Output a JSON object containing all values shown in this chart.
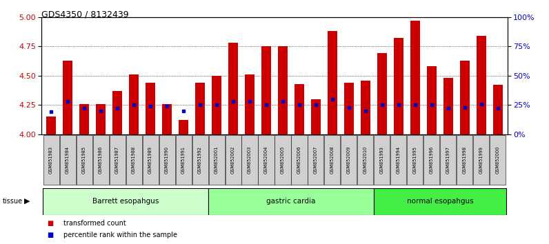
{
  "title": "GDS4350 / 8132439",
  "samples": [
    "GSM851983",
    "GSM851984",
    "GSM851985",
    "GSM851986",
    "GSM851987",
    "GSM851988",
    "GSM851989",
    "GSM851990",
    "GSM851991",
    "GSM851992",
    "GSM852001",
    "GSM852002",
    "GSM852003",
    "GSM852004",
    "GSM852005",
    "GSM852006",
    "GSM852007",
    "GSM852008",
    "GSM852009",
    "GSM852010",
    "GSM851993",
    "GSM851994",
    "GSM851995",
    "GSM851996",
    "GSM851997",
    "GSM851998",
    "GSM851999",
    "GSM852000"
  ],
  "transformed_count": [
    4.15,
    4.63,
    4.26,
    4.26,
    4.37,
    4.51,
    4.44,
    4.26,
    4.12,
    4.44,
    4.5,
    4.78,
    4.51,
    4.75,
    4.75,
    4.43,
    4.3,
    4.88,
    4.44,
    4.46,
    4.69,
    4.82,
    4.97,
    4.58,
    4.48,
    4.63,
    4.84,
    4.42
  ],
  "percentile_rank": [
    19,
    28,
    22,
    20,
    22,
    25,
    24,
    24,
    20,
    25,
    25,
    28,
    28,
    25,
    28,
    25,
    25,
    30,
    23,
    20,
    25,
    25,
    25,
    25,
    22,
    23,
    26,
    22
  ],
  "groups": [
    {
      "label": "Barrett esopahgus",
      "start": 0,
      "end": 10,
      "color": "#ccffcc"
    },
    {
      "label": "gastric cardia",
      "start": 10,
      "end": 20,
      "color": "#99ff99"
    },
    {
      "label": "normal esopahgus",
      "start": 20,
      "end": 28,
      "color": "#44ee44"
    }
  ],
  "ylim_left": [
    4.0,
    5.0
  ],
  "ylim_right": [
    0,
    100
  ],
  "yticks_left": [
    4.0,
    4.25,
    4.5,
    4.75,
    5.0
  ],
  "yticks_right": [
    0,
    25,
    50,
    75,
    100
  ],
  "bar_color": "#cc0000",
  "percentile_color": "#0000cc",
  "bg_color": "#ffffff",
  "title_fontsize": 9,
  "axis_label_color_left": "#cc0000",
  "axis_label_color_right": "#0000cc"
}
